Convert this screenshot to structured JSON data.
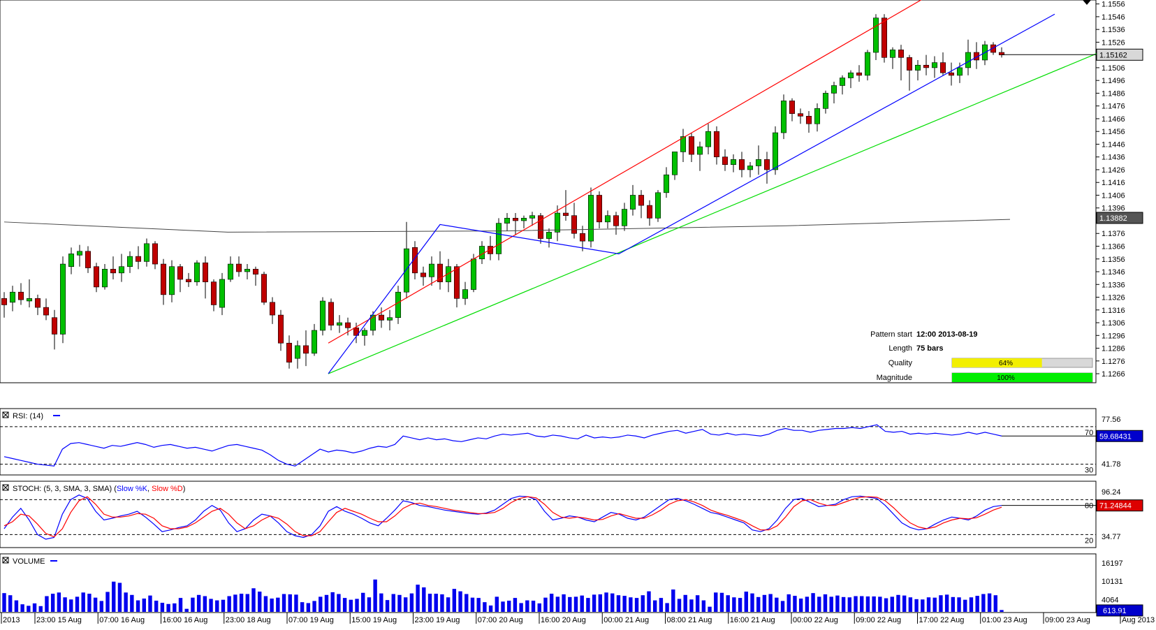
{
  "chart_data": {
    "type": "candlestick",
    "price": {
      "ticks": [
        "1.1556",
        "1.1546",
        "1.1536",
        "1.1526",
        "1.1516",
        "1.1506",
        "1.1496",
        "1.1486",
        "1.1476",
        "1.1466",
        "1.1456",
        "1.1446",
        "1.1436",
        "1.1426",
        "1.1416",
        "1.1406",
        "1.1396",
        "1.1386",
        "1.1376",
        "1.1366",
        "1.1356",
        "1.1346",
        "1.1336",
        "1.1326",
        "1.1316",
        "1.1306",
        "1.1296",
        "1.1286",
        "1.1276",
        "1.1266"
      ],
      "ylim": [
        1.126,
        1.1558
      ],
      "current_price": "1.15162",
      "ma_value": "1.13882"
    },
    "candles": [
      [
        1.1325,
        1.133,
        1.131,
        1.132
      ],
      [
        1.1322,
        1.1335,
        1.1315,
        1.133
      ],
      [
        1.133,
        1.1337,
        1.132,
        1.1324
      ],
      [
        1.1323,
        1.134,
        1.1318,
        1.1325
      ],
      [
        1.1325,
        1.1328,
        1.1312,
        1.1318
      ],
      [
        1.1318,
        1.1325,
        1.1308,
        1.1312
      ],
      [
        1.131,
        1.1316,
        1.1285,
        1.1297
      ],
      [
        1.1297,
        1.1358,
        1.129,
        1.1352
      ],
      [
        1.135,
        1.1365,
        1.1344,
        1.136
      ],
      [
        1.1359,
        1.1367,
        1.135,
        1.1362
      ],
      [
        1.1362,
        1.1366,
        1.1345,
        1.1349
      ],
      [
        1.135,
        1.1353,
        1.133,
        1.1334
      ],
      [
        1.1334,
        1.1352,
        1.1332,
        1.1348
      ],
      [
        1.1348,
        1.1358,
        1.134,
        1.1345
      ],
      [
        1.1345,
        1.136,
        1.1338,
        1.135
      ],
      [
        1.135,
        1.1362,
        1.1345,
        1.1358
      ],
      [
        1.1358,
        1.1366,
        1.1348,
        1.1354
      ],
      [
        1.1354,
        1.1372,
        1.135,
        1.1368
      ],
      [
        1.1368,
        1.137,
        1.1348,
        1.1352
      ],
      [
        1.1352,
        1.1356,
        1.132,
        1.1328
      ],
      [
        1.1328,
        1.1355,
        1.1322,
        1.135
      ],
      [
        1.135,
        1.1352,
        1.133,
        1.134
      ],
      [
        1.134,
        1.1345,
        1.1334,
        1.1338
      ],
      [
        1.1338,
        1.1355,
        1.1335,
        1.1353
      ],
      [
        1.1353,
        1.1358,
        1.1325,
        1.1338
      ],
      [
        1.1338,
        1.134,
        1.1315,
        1.132
      ],
      [
        1.1318,
        1.1345,
        1.1312,
        1.134
      ],
      [
        1.134,
        1.1358,
        1.1338,
        1.1352
      ],
      [
        1.1352,
        1.1358,
        1.1342,
        1.1346
      ],
      [
        1.1346,
        1.1352,
        1.134,
        1.1348
      ],
      [
        1.1348,
        1.135,
        1.1335,
        1.1344
      ],
      [
        1.1344,
        1.1346,
        1.132,
        1.1322
      ],
      [
        1.1322,
        1.1326,
        1.1305,
        1.1312
      ],
      [
        1.1312,
        1.1316,
        1.1284,
        1.129
      ],
      [
        1.129,
        1.1296,
        1.127,
        1.1275
      ],
      [
        1.1278,
        1.1292,
        1.127,
        1.1288
      ],
      [
        1.1288,
        1.13,
        1.1272,
        1.1282
      ],
      [
        1.1282,
        1.1305,
        1.128,
        1.13
      ],
      [
        1.13,
        1.1326,
        1.1296,
        1.1323
      ],
      [
        1.1322,
        1.1325,
        1.13,
        1.1304
      ],
      [
        1.1304,
        1.1312,
        1.1298,
        1.1306
      ],
      [
        1.1306,
        1.131,
        1.1296,
        1.1302
      ],
      [
        1.1302,
        1.1306,
        1.129,
        1.1296
      ],
      [
        1.1296,
        1.1302,
        1.1288,
        1.13
      ],
      [
        1.13,
        1.1315,
        1.1296,
        1.1312
      ],
      [
        1.1312,
        1.1318,
        1.1302,
        1.1308
      ],
      [
        1.1308,
        1.1316,
        1.13,
        1.131
      ],
      [
        1.131,
        1.1335,
        1.1305,
        1.133
      ],
      [
        1.133,
        1.1385,
        1.1325,
        1.1364
      ],
      [
        1.1365,
        1.137,
        1.134,
        1.1345
      ],
      [
        1.1345,
        1.135,
        1.1335,
        1.1342
      ],
      [
        1.1342,
        1.1358,
        1.1335,
        1.1352
      ],
      [
        1.1352,
        1.1362,
        1.1332,
        1.1338
      ],
      [
        1.1338,
        1.1356,
        1.133,
        1.135
      ],
      [
        1.135,
        1.1352,
        1.1318,
        1.1325
      ],
      [
        1.1325,
        1.1338,
        1.132,
        1.1332
      ],
      [
        1.1332,
        1.136,
        1.133,
        1.1356
      ],
      [
        1.1356,
        1.137,
        1.1352,
        1.1366
      ],
      [
        1.1366,
        1.1374,
        1.1355,
        1.136
      ],
      [
        1.136,
        1.1388,
        1.1355,
        1.1384
      ],
      [
        1.1384,
        1.1392,
        1.1378,
        1.1388
      ],
      [
        1.1388,
        1.1392,
        1.1375,
        1.1386
      ],
      [
        1.1386,
        1.139,
        1.138,
        1.1388
      ],
      [
        1.1388,
        1.1393,
        1.1382,
        1.139
      ],
      [
        1.139,
        1.1392,
        1.1368,
        1.1372
      ],
      [
        1.1372,
        1.138,
        1.1365,
        1.1377
      ],
      [
        1.1377,
        1.1398,
        1.137,
        1.1392
      ],
      [
        1.1392,
        1.141,
        1.1386,
        1.139
      ],
      [
        1.139,
        1.14,
        1.1372,
        1.1376
      ],
      [
        1.1376,
        1.1382,
        1.1362,
        1.137
      ],
      [
        1.137,
        1.1412,
        1.1365,
        1.1406
      ],
      [
        1.1406,
        1.1409,
        1.138,
        1.1385
      ],
      [
        1.1385,
        1.1394,
        1.138,
        1.139
      ],
      [
        1.139,
        1.1393,
        1.1375,
        1.1382
      ],
      [
        1.1382,
        1.14,
        1.1378,
        1.1395
      ],
      [
        1.1395,
        1.1414,
        1.139,
        1.1406
      ],
      [
        1.1406,
        1.141,
        1.1388,
        1.1398
      ],
      [
        1.1398,
        1.1402,
        1.1382,
        1.1388
      ],
      [
        1.1388,
        1.141,
        1.1385,
        1.1408
      ],
      [
        1.1408,
        1.1428,
        1.1404,
        1.1422
      ],
      [
        1.1422,
        1.144,
        1.1418,
        1.144
      ],
      [
        1.144,
        1.1458,
        1.1432,
        1.1452
      ],
      [
        1.1452,
        1.1455,
        1.1432,
        1.1438
      ],
      [
        1.1438,
        1.1448,
        1.1425,
        1.1444
      ],
      [
        1.1444,
        1.1462,
        1.1438,
        1.1456
      ],
      [
        1.1456,
        1.146,
        1.143,
        1.1436
      ],
      [
        1.1436,
        1.1442,
        1.1425,
        1.143
      ],
      [
        1.143,
        1.1438,
        1.1424,
        1.1434
      ],
      [
        1.1434,
        1.144,
        1.142,
        1.1426
      ],
      [
        1.1426,
        1.1432,
        1.142,
        1.1429
      ],
      [
        1.1429,
        1.1445,
        1.1422,
        1.1434
      ],
      [
        1.1434,
        1.144,
        1.1415,
        1.1426
      ],
      [
        1.1426,
        1.146,
        1.1422,
        1.1455
      ],
      [
        1.1455,
        1.1485,
        1.145,
        1.148
      ],
      [
        1.148,
        1.1482,
        1.1464,
        1.147
      ],
      [
        1.147,
        1.1474,
        1.1462,
        1.1468
      ],
      [
        1.1468,
        1.1472,
        1.1455,
        1.1462
      ],
      [
        1.1462,
        1.1478,
        1.1456,
        1.1474
      ],
      [
        1.1474,
        1.1488,
        1.147,
        1.1486
      ],
      [
        1.1486,
        1.1495,
        1.1478,
        1.1492
      ],
      [
        1.1492,
        1.15,
        1.1485,
        1.1498
      ],
      [
        1.1498,
        1.1504,
        1.149,
        1.1502
      ],
      [
        1.1502,
        1.1508,
        1.1495,
        1.15
      ],
      [
        1.15,
        1.152,
        1.1496,
        1.1518
      ],
      [
        1.1518,
        1.1548,
        1.1512,
        1.1545
      ],
      [
        1.1545,
        1.1548,
        1.151,
        1.1514
      ],
      [
        1.1514,
        1.1522,
        1.1505,
        1.152
      ],
      [
        1.152,
        1.1524,
        1.1496,
        1.1514
      ],
      [
        1.1514,
        1.1516,
        1.1488,
        1.1504
      ],
      [
        1.1504,
        1.1512,
        1.1496,
        1.1508
      ],
      [
        1.1508,
        1.1516,
        1.15,
        1.1506
      ],
      [
        1.1506,
        1.1515,
        1.1498,
        1.151
      ],
      [
        1.151,
        1.1518,
        1.15,
        1.1502
      ],
      [
        1.1502,
        1.151,
        1.1492,
        1.15
      ],
      [
        1.15,
        1.151,
        1.1494,
        1.1506
      ],
      [
        1.1506,
        1.1528,
        1.15,
        1.1518
      ],
      [
        1.1518,
        1.1526,
        1.1505,
        1.1512
      ],
      [
        1.1512,
        1.1527,
        1.1508,
        1.1524
      ],
      [
        1.1524,
        1.1526,
        1.1516,
        1.1518
      ],
      [
        1.1518,
        1.1522,
        1.1514,
        1.1516
      ]
    ],
    "pattern": {
      "upper_line": [
        [
          58,
          1.129
        ],
        [
          166,
          1.1564
        ]
      ],
      "lower_line": [
        [
          58,
          1.1266
        ],
        [
          196,
          1.1518
        ]
      ],
      "zigzag": [
        [
          58,
          1.1266
        ],
        [
          78,
          1.1383
        ],
        [
          110,
          1.136
        ],
        [
          188,
          1.1548
        ]
      ],
      "ma_line": [
        [
          0,
          1.1385
        ],
        [
          40,
          1.1377
        ],
        [
          90,
          1.1378
        ],
        [
          140,
          1.1382
        ],
        [
          180,
          1.1387
        ]
      ]
    },
    "info": {
      "pattern_start_label": "Pattern start",
      "pattern_start_value": "12:00 2013-08-19",
      "length_label": "Length",
      "length_value": "75 bars",
      "quality_label": "Quality",
      "quality_value": "64%",
      "quality_fraction": 0.64,
      "magnitude_label": "Magnitude",
      "magnitude_value": "100%",
      "magnitude_fraction": 1.0
    },
    "rsi": {
      "label": "RSI: (14)",
      "ticks": [
        "77.56",
        "41.78"
      ],
      "levels": [
        "70",
        "30"
      ],
      "current": "59.68431",
      "values": [
        38,
        36,
        34,
        32,
        30,
        29,
        28,
        46,
        52,
        53,
        51,
        49,
        47,
        50,
        49,
        51,
        53,
        51,
        48,
        50,
        51,
        49,
        47,
        48,
        46,
        44,
        47,
        50,
        51,
        49,
        47,
        45,
        40,
        34,
        30,
        28,
        34,
        40,
        46,
        43,
        45,
        44,
        42,
        44,
        47,
        49,
        48,
        51,
        60,
        58,
        56,
        58,
        56,
        57,
        55,
        54,
        56,
        58,
        57,
        60,
        62,
        61,
        62,
        63,
        60,
        59,
        61,
        60,
        58,
        57,
        61,
        58,
        59,
        58,
        59,
        61,
        60,
        58,
        61,
        63,
        65,
        66,
        63,
        65,
        67,
        62,
        61,
        63,
        61,
        62,
        61,
        60,
        62,
        66,
        68,
        66,
        66,
        64,
        66,
        67,
        68,
        68,
        69,
        68,
        70,
        72,
        65,
        64,
        65,
        62,
        63,
        62,
        63,
        62,
        61,
        62,
        64,
        62,
        64,
        62,
        60
      ]
    },
    "stoch": {
      "label": "STOCH: (5, 3, SMA, 3, SMA)",
      "k_label": "Slow %K",
      "d_label": "Slow %D",
      "ticks": [
        "96.24",
        "34.77"
      ],
      "levels": [
        "80",
        "20"
      ],
      "current": "71.24844",
      "k": [
        30,
        50,
        65,
        45,
        20,
        12,
        15,
        55,
        80,
        88,
        82,
        60,
        45,
        48,
        52,
        55,
        60,
        50,
        38,
        25,
        28,
        32,
        35,
        45,
        60,
        70,
        62,
        40,
        25,
        30,
        45,
        55,
        52,
        40,
        25,
        18,
        15,
        20,
        35,
        60,
        68,
        60,
        55,
        48,
        40,
        35,
        48,
        62,
        78,
        75,
        70,
        68,
        65,
        62,
        60,
        58,
        56,
        55,
        57,
        62,
        72,
        82,
        86,
        85,
        80,
        60,
        45,
        48,
        52,
        50,
        45,
        42,
        50,
        58,
        55,
        48,
        45,
        50,
        60,
        70,
        80,
        82,
        78,
        72,
        65,
        58,
        55,
        50,
        45,
        40,
        28,
        25,
        30,
        45,
        65,
        80,
        82,
        75,
        68,
        70,
        72,
        80,
        85,
        86,
        84,
        82,
        70,
        55,
        40,
        32,
        28,
        30,
        38,
        45,
        50,
        48,
        45,
        52,
        62,
        68,
        70
      ],
      "d": [
        35,
        42,
        55,
        52,
        38,
        22,
        16,
        30,
        58,
        78,
        85,
        72,
        55,
        50,
        50,
        52,
        56,
        55,
        48,
        35,
        30,
        30,
        33,
        40,
        50,
        60,
        65,
        55,
        40,
        30,
        35,
        45,
        52,
        48,
        38,
        25,
        18,
        18,
        25,
        42,
        58,
        65,
        60,
        55,
        48,
        42,
        42,
        52,
        65,
        72,
        74,
        70,
        68,
        65,
        62,
        60,
        58,
        56,
        56,
        58,
        65,
        75,
        82,
        85,
        83,
        72,
        58,
        50,
        48,
        50,
        48,
        45,
        46,
        52,
        56,
        52,
        48,
        48,
        54,
        62,
        72,
        78,
        80,
        76,
        70,
        62,
        57,
        53,
        48,
        43,
        35,
        28,
        28,
        35,
        50,
        68,
        78,
        80,
        74,
        70,
        70,
        75,
        80,
        84,
        85,
        84,
        78,
        66,
        52,
        40,
        33,
        30,
        33,
        40,
        45,
        48,
        47,
        49,
        55,
        62,
        67
      ]
    },
    "volume": {
      "label": "VOLUME",
      "ticks": [
        "16197",
        "10131",
        "4064"
      ],
      "current": "613.91",
      "values": [
        6200,
        5500,
        3800,
        2500,
        2000,
        2800,
        1900,
        5200,
        6000,
        6400,
        4800,
        4100,
        5000,
        6400,
        6000,
        4700,
        3600,
        6600,
        10000,
        9600,
        6400,
        5600,
        3800,
        4400,
        5400,
        3700,
        3000,
        2600,
        2800,
        4600,
        1000,
        4700,
        5600,
        5200,
        4300,
        3800,
        4000,
        5200,
        5700,
        6000,
        5900,
        7800,
        6700,
        5200,
        4400,
        4700,
        5900,
        5800,
        5700,
        3200,
        2900,
        3600,
        5000,
        5600,
        6500,
        5900,
        4600,
        4000,
        4300,
        6300,
        4800,
        10700,
        6100,
        3900,
        5900,
        5600,
        4800,
        6100,
        9000,
        8100,
        6000,
        6000,
        5800,
        4800,
        7600,
        6800,
        5900,
        4700,
        4600,
        3200,
        2100,
        5000,
        3400,
        3700,
        4600,
        2900,
        3800,
        3700,
        2800,
        4700,
        6000,
        5000,
        5800,
        4900,
        5000,
        5400,
        4600,
        5700,
        5800,
        6400,
        6100,
        5500,
        5300,
        4800,
        4600,
        5500,
        6800,
        3800,
        4600,
        2900,
        7400,
        4300,
        5600,
        4100,
        5500,
        3800,
        1700,
        6400,
        6300,
        5500,
        4800,
        4600,
        6700,
        6100,
        4900,
        5600,
        5900,
        4700,
        3600,
        5800,
        5300,
        4400,
        5000,
        6200,
        5000,
        5800,
        5000,
        5400,
        4900,
        4800,
        5200,
        5200,
        5100,
        5100,
        5000,
        4500,
        5000,
        5600,
        5400,
        4800,
        4200,
        4100,
        4800,
        4700,
        5500,
        5700,
        4900,
        4800,
        4000,
        4800,
        5300,
        5900,
        6100,
        5500,
        600
      ]
    },
    "time_labels": [
      "2013",
      "23:00 15 Aug",
      "07:00 16 Aug",
      "16:00 16 Aug",
      "23:00 18 Aug",
      "07:00 19 Aug",
      "15:00 19 Aug",
      "23:00 19 Aug",
      "07:00 20 Aug",
      "16:00 20 Aug",
      "00:00 21 Aug",
      "08:00 21 Aug",
      "16:00 21 Aug",
      "00:00 22 Aug",
      "09:00 22 Aug",
      "17:00 22 Aug",
      "01:00 23 Aug",
      "09:00 23 Aug",
      "Aug 2013"
    ]
  }
}
